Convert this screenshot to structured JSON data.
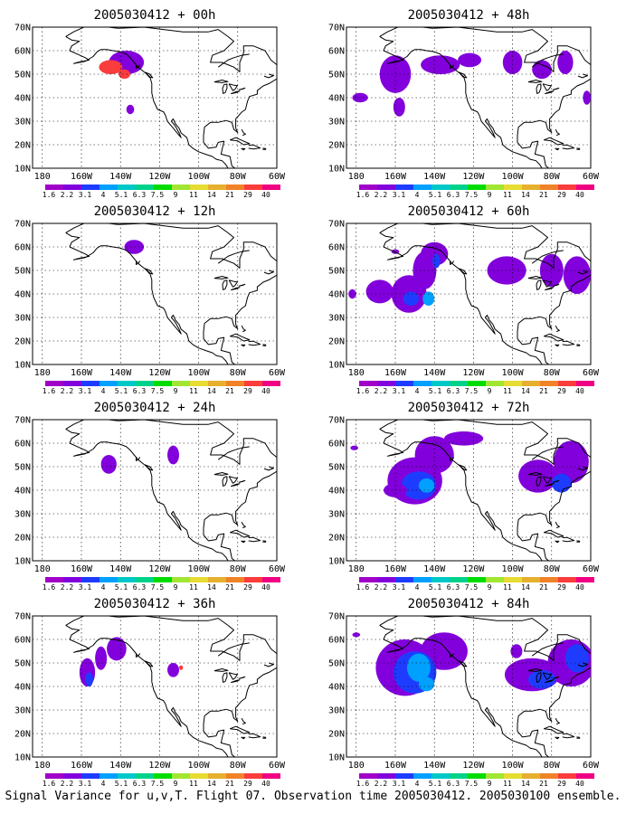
{
  "caption": "Signal Variance for u,v,T. Flight 07. Observation time 2005030412. 2005030100 ensemble.",
  "colorbar": {
    "labels": [
      "1.6",
      "2.2",
      "3.1",
      "4",
      "5.1",
      "6.3",
      "7.5",
      "9",
      "11",
      "14",
      "21",
      "29",
      "40"
    ],
    "colors": [
      "#a000c8",
      "#8200dc",
      "#1e3cff",
      "#00a0ff",
      "#00c8c8",
      "#00d28c",
      "#00dc00",
      "#a0e632",
      "#e6dc32",
      "#e6af2d",
      "#f08228",
      "#fa3c3c",
      "#f00082"
    ]
  },
  "axes": {
    "lat_labels": [
      "10N",
      "20N",
      "30N",
      "40N",
      "50N",
      "60N",
      "70N"
    ],
    "lon_labels": [
      "180",
      "160W",
      "140W",
      "120W",
      "100W",
      "80W",
      "60W"
    ],
    "lat_range": [
      10,
      70
    ],
    "lon_range": [
      -185,
      -60
    ]
  },
  "panels": [
    {
      "title": "2005030412 + 00h",
      "col": 0,
      "row": 0,
      "blobs": [
        [
          -137,
          55,
          9,
          5,
          1
        ],
        [
          -145,
          53,
          6,
          3,
          11
        ],
        [
          -138,
          50,
          3,
          2,
          11
        ],
        [
          -135,
          35,
          2,
          2,
          1
        ]
      ]
    },
    {
      "title": "2005030412 + 12h",
      "col": 0,
      "row": 1,
      "blobs": [
        [
          -133,
          60,
          5,
          3,
          1
        ]
      ]
    },
    {
      "title": "2005030412 + 24h",
      "col": 0,
      "row": 2,
      "blobs": [
        [
          -146,
          51,
          4,
          4,
          1
        ],
        [
          -113,
          55,
          3,
          4,
          1
        ]
      ]
    },
    {
      "title": "2005030412 + 36h",
      "col": 0,
      "row": 3,
      "blobs": [
        [
          -157,
          46,
          4,
          6,
          1
        ],
        [
          -150,
          52,
          3,
          5,
          1
        ],
        [
          -142,
          56,
          5,
          5,
          1
        ],
        [
          -156,
          43,
          2,
          3,
          2
        ],
        [
          -113,
          47,
          3,
          3,
          1
        ],
        [
          -109,
          48,
          1,
          1,
          11
        ]
      ]
    },
    {
      "title": "2005030412 + 48h",
      "col": 1,
      "row": 0,
      "blobs": [
        [
          -178,
          40,
          4,
          2,
          1
        ],
        [
          -160,
          50,
          8,
          8,
          1
        ],
        [
          -158,
          36,
          3,
          4,
          1
        ],
        [
          -137,
          54,
          10,
          4,
          1
        ],
        [
          -122,
          56,
          6,
          3,
          1
        ],
        [
          -100,
          55,
          5,
          5,
          1
        ],
        [
          -85,
          52,
          5,
          4,
          1
        ],
        [
          -73,
          55,
          4,
          5,
          1
        ],
        [
          -62,
          40,
          2,
          3,
          1
        ]
      ]
    },
    {
      "title": "2005030412 + 60h",
      "col": 1,
      "row": 1,
      "blobs": [
        [
          -182,
          40,
          2,
          2,
          1
        ],
        [
          -168,
          41,
          7,
          5,
          1
        ],
        [
          -153,
          40,
          9,
          8,
          1
        ],
        [
          -145,
          50,
          6,
          8,
          1
        ],
        [
          -140,
          57,
          7,
          5,
          1
        ],
        [
          -152,
          38,
          4,
          3,
          2
        ],
        [
          -143,
          38,
          3,
          3,
          3
        ],
        [
          -139,
          54,
          2,
          3,
          2
        ],
        [
          -103,
          50,
          10,
          6,
          1
        ],
        [
          -80,
          50,
          6,
          7,
          1
        ],
        [
          -67,
          48,
          7,
          8,
          1
        ],
        [
          -160,
          58,
          2,
          1,
          1
        ]
      ]
    },
    {
      "title": "2005030412 + 72h",
      "col": 1,
      "row": 2,
      "blobs": [
        [
          -150,
          44,
          14,
          10,
          1
        ],
        [
          -140,
          55,
          10,
          8,
          1
        ],
        [
          -125,
          62,
          10,
          3,
          1
        ],
        [
          -148,
          42,
          9,
          6,
          2
        ],
        [
          -144,
          42,
          4,
          3,
          3
        ],
        [
          -160,
          40,
          6,
          3,
          1
        ],
        [
          -87,
          46,
          10,
          7,
          1
        ],
        [
          -70,
          52,
          9,
          9,
          1
        ],
        [
          -75,
          43,
          5,
          4,
          2
        ],
        [
          -181,
          58,
          2,
          1,
          1
        ]
      ]
    },
    {
      "title": "2005030412 + 84h",
      "col": 1,
      "row": 3,
      "blobs": [
        [
          -155,
          48,
          15,
          12,
          1
        ],
        [
          -135,
          55,
          12,
          8,
          1
        ],
        [
          -150,
          46,
          11,
          9,
          2
        ],
        [
          -148,
          48,
          6,
          6,
          3
        ],
        [
          -144,
          41,
          4,
          3,
          3
        ],
        [
          -90,
          45,
          14,
          7,
          1
        ],
        [
          -70,
          50,
          12,
          10,
          1
        ],
        [
          -85,
          43,
          7,
          4,
          2
        ],
        [
          -67,
          52,
          6,
          6,
          2
        ],
        [
          -98,
          55,
          3,
          3,
          1
        ],
        [
          -180,
          62,
          2,
          1,
          1
        ]
      ]
    }
  ]
}
